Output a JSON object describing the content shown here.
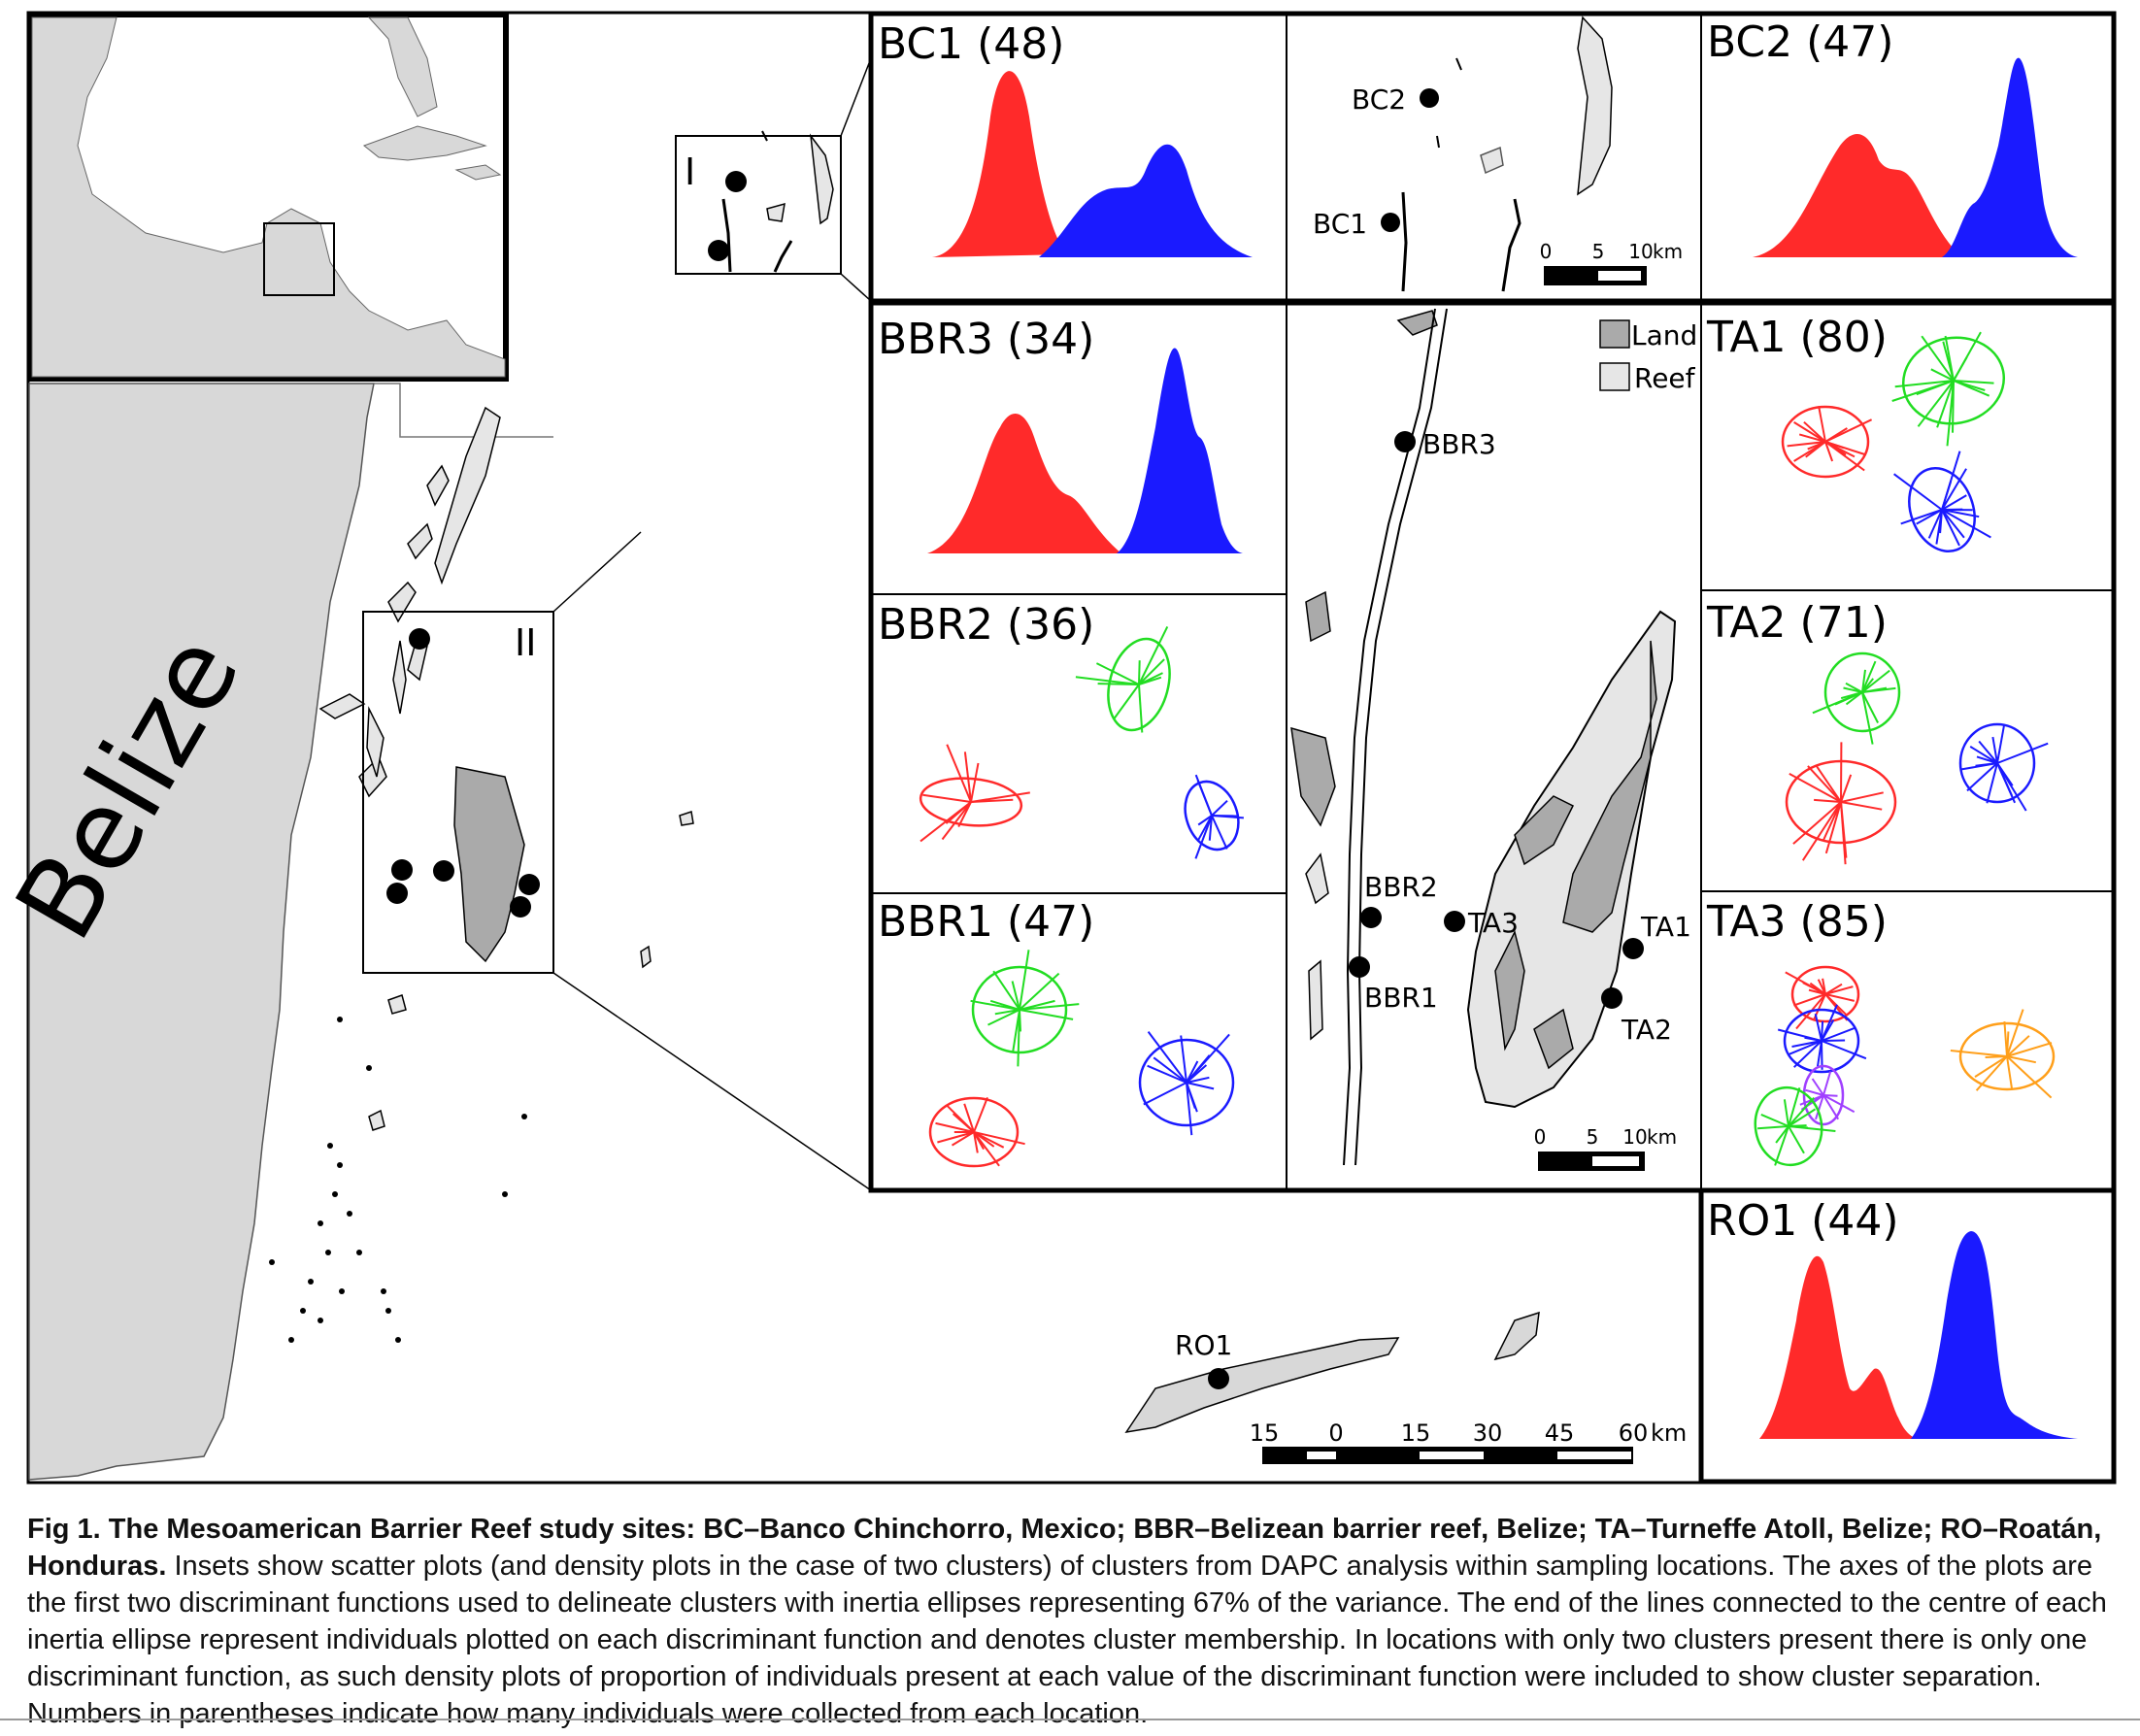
{
  "region_label": "Belize",
  "box_labels": [
    "I",
    "II"
  ],
  "land_colors": {
    "land": "#aaaaaa",
    "reef": "#e6e6e6",
    "mainland": "#d8d8d8"
  },
  "legend": {
    "land": "Land",
    "reef": "Reef"
  },
  "scale_bars": {
    "chinchorro": {
      "ticks": [
        "0",
        "5",
        "10"
      ],
      "unit": "km"
    },
    "turneffe": {
      "ticks": [
        "0",
        "5",
        "10"
      ],
      "unit": "km"
    },
    "main": {
      "ticks": [
        "15",
        "0",
        "15",
        "30",
        "45",
        "60"
      ],
      "unit": "km"
    }
  },
  "site_labels": {
    "BC1": "BC1",
    "BC2": "BC2",
    "BBR1": "BBR1",
    "BBR2": "BBR2",
    "BBR3": "BBR3",
    "TA1": "TA1",
    "TA2": "TA2",
    "TA3": "TA3",
    "RO1": "RO1"
  },
  "panels": {
    "BC1": {
      "title": "BC1 (48)",
      "n": 48,
      "type": "density"
    },
    "BC2": {
      "title": "BC2 (47)",
      "n": 47,
      "type": "density"
    },
    "BBR3": {
      "title": "BBR3 (34)",
      "n": 34,
      "type": "density"
    },
    "RO1": {
      "title": "RO1 (44)",
      "n": 44,
      "type": "density"
    },
    "BBR2": {
      "title": "BBR2 (36)",
      "n": 36,
      "type": "scatter",
      "clusters": 3
    },
    "BBR1": {
      "title": "BBR1 (47)",
      "n": 47,
      "type": "scatter",
      "clusters": 3
    },
    "TA1": {
      "title": "TA1 (80)",
      "n": 80,
      "type": "scatter",
      "clusters": 3
    },
    "TA2": {
      "title": "TA2 (71)",
      "n": 71,
      "type": "scatter",
      "clusters": 3
    },
    "TA3": {
      "title": "TA3 (85)",
      "n": 85,
      "type": "scatter",
      "clusters": 5
    }
  },
  "cluster_colors": {
    "red": "#ff2a2a",
    "blue": "#1a1aff",
    "green": "#22dd22",
    "orange": "#ff9f1a",
    "purple": "#a040ff"
  },
  "caption": {
    "bold": "Fig 1. The Mesoamerican Barrier Reef study sites: BC–Banco Chinchorro, Mexico; BBR–Belizean barrier reef, Belize; TA–Turneffe Atoll, Belize; RO–Roatán, Honduras.",
    "text": " Insets show scatter plots (and density plots in the case of two clusters) of clusters from DAPC analysis within sampling locations. The axes of the plots are the first two discriminant functions used to delineate clusters with inertia ellipses representing 67% of the variance. The end of the lines connected to the centre of each inertia ellipse represent individuals plotted on each discriminant function and denotes cluster membership. In locations with only two clusters present there is only one discriminant function, as such density plots of proportion of individuals present at each value of the discriminant function were included to show cluster separation. Numbers in parentheses indicate how many individuals were collected from each location."
  }
}
